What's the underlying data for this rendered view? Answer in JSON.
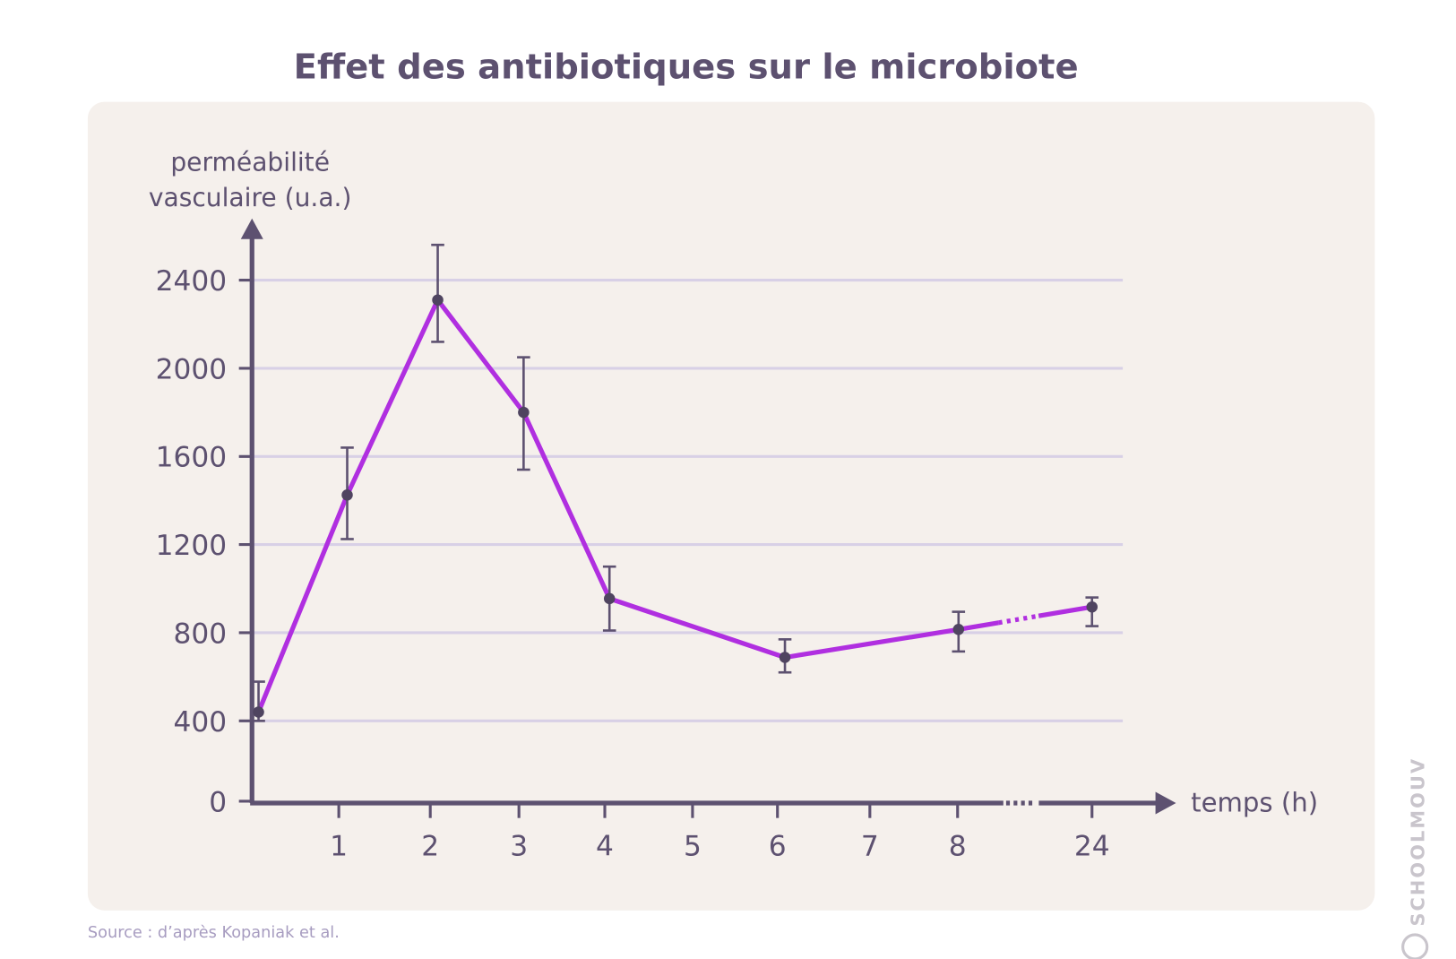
{
  "chart_data": {
    "type": "line",
    "title": "Effet des antibiotiques sur le microbiote",
    "ylabel_line1": "perméabilité",
    "ylabel_line2": "vasculaire (u.a.)",
    "xlabel": "temps (h)",
    "y_ticks": [
      "0",
      "400",
      "800",
      "1200",
      "1600",
      "2000",
      "2400"
    ],
    "x_ticks": [
      "1",
      "2",
      "3",
      "4",
      "5",
      "6",
      "7",
      "8",
      "24"
    ],
    "ylim": [
      0,
      2600
    ],
    "grid": true,
    "x_axis_break": "between 8 and 24",
    "series": [
      {
        "name": "perméabilité vasculaire",
        "color": "#b02fe0",
        "x": [
          0,
          1,
          2,
          3,
          4,
          6,
          8,
          24
        ],
        "y": [
          440,
          1425,
          2310,
          1800,
          955,
          688,
          815,
          917
        ],
        "err_low": [
          400,
          1225,
          2120,
          1540,
          810,
          620,
          715,
          830
        ],
        "err_high": [
          578,
          1640,
          2560,
          2050,
          1100,
          770,
          895,
          960
        ]
      }
    ],
    "source": "Source : d’après Kopaniak et al.",
    "watermark": "SCHOOLMOUV"
  }
}
